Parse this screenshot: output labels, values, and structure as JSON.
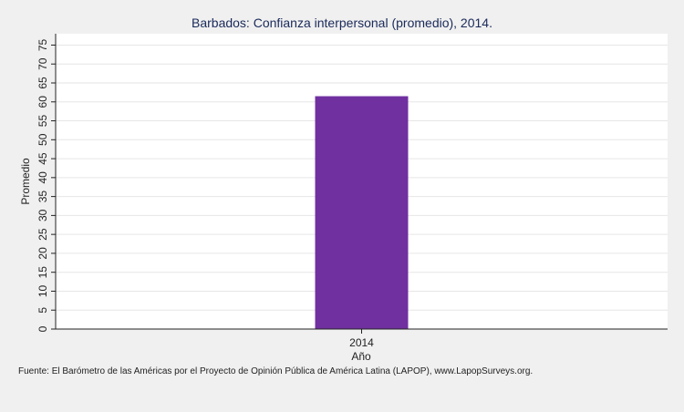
{
  "chart_data": {
    "type": "bar",
    "title": "Barbados: Confianza interpersonal (promedio), 2014.",
    "categories": [
      "2014"
    ],
    "values": [
      61.5
    ],
    "xlabel": "Año",
    "ylabel": "Promedio",
    "ylim": [
      0,
      78
    ],
    "yticks": [
      0,
      5,
      10,
      15,
      20,
      25,
      30,
      35,
      40,
      45,
      50,
      55,
      60,
      65,
      70,
      75
    ],
    "grid": true,
    "legend": "none",
    "colors": {
      "bar": "#7030a0",
      "grid": "#e6e6e6",
      "background": "#f0f0f0",
      "plot_background": "#ffffff"
    }
  },
  "source_note": "Fuente: El Barómetro de las Américas por el Proyecto de Opinión Pública de América Latina (LAPOP), www.LapopSurveys.org."
}
